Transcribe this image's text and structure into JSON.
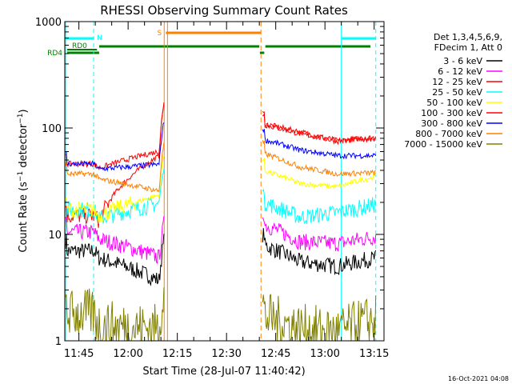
{
  "chart_data": {
    "type": "line",
    "title": "RHESSI Observing Summary Count Rates",
    "xlabel": "Start Time (28-Jul-07 11:40:42)",
    "ylabel": "Count Rate (s",
    "ylabel_sup": "−1",
    "ylabel_tail": " detector",
    "ylabel_tail_sup": "−1",
    "ylabel_close": ")",
    "y_scale": "log",
    "ylim": [
      1,
      1000
    ],
    "xlim": [
      "11:40:42",
      "13:18:00"
    ],
    "x_ticks": [
      "11:45",
      "12:00",
      "12:15",
      "12:30",
      "12:45",
      "13:00",
      "13:15"
    ],
    "y_ticks": [
      "1",
      "10",
      "100",
      "1000"
    ],
    "footer_date": "16-Oct-2021 04:08",
    "legend_header": [
      "Det 1,3,4,5,6,9,",
      "FDecim 1, Att 0"
    ],
    "legend_position": "right",
    "flags": {
      "night_label": "N",
      "saa_label": "S",
      "rd0_label": "RD0",
      "rd4_label": "RD4",
      "night_color": "#00ffff",
      "saa_color": "#ff8000",
      "decim_color": "#008000"
    },
    "series": [
      {
        "name": "3 - 6 keV",
        "color": "#000000",
        "pre": [
          7.0,
          6.0,
          3.5
        ],
        "peak": 9,
        "post": [
          8.0,
          5.5,
          5.0,
          6.0
        ]
      },
      {
        "name": "6 - 12 keV",
        "color": "#ff00ff",
        "pre": [
          10.5,
          9.0,
          5.8
        ],
        "peak": 13,
        "post": [
          12.5,
          8.5,
          8.2,
          9.5
        ]
      },
      {
        "name": "12 - 25 keV",
        "color": "#ff0000",
        "pre": [
          15.0,
          13.5,
          58.0
        ],
        "peak": 180,
        "post": [
          110.0,
          92.0,
          76.0,
          82.0
        ]
      },
      {
        "name": "25 - 50 keV",
        "color": "#00ffff",
        "pre": [
          17.0,
          14.0,
          20.0
        ],
        "peak": 45,
        "post": [
          20.0,
          14.5,
          16.0,
          19.0
        ]
      },
      {
        "name": "50 - 100 keV",
        "color": "#ffff00",
        "pre": [
          17.0,
          15.0,
          24.0
        ],
        "peak": 60,
        "post": [
          40.0,
          30.0,
          28.0,
          35.0
        ]
      },
      {
        "name": "100 - 300 keV",
        "color": "#ff0000",
        "pre": [
          46.0,
          42.0,
          62.0
        ],
        "peak": 175,
        "post": [
          108.0,
          88.0,
          75.0,
          80.0
        ]
      },
      {
        "name": "300 - 800 keV",
        "color": "#0000ff",
        "pre": [
          46.0,
          41.0,
          46.0
        ],
        "peak": 120,
        "post": [
          78.0,
          62.0,
          55.0,
          55.0
        ]
      },
      {
        "name": "800 - 7000 keV",
        "color": "#ff8000",
        "pre": [
          37.0,
          33.0,
          25.0
        ],
        "peak": 75,
        "post": [
          58.0,
          43.0,
          37.0,
          38.0
        ]
      },
      {
        "name": "7000 - 15000 keV",
        "color": "#808000",
        "pre": [
          1.8,
          1.4,
          1.3
        ],
        "peak": 3,
        "post": [
          1.7,
          1.3,
          1.2,
          1.6
        ]
      }
    ]
  }
}
